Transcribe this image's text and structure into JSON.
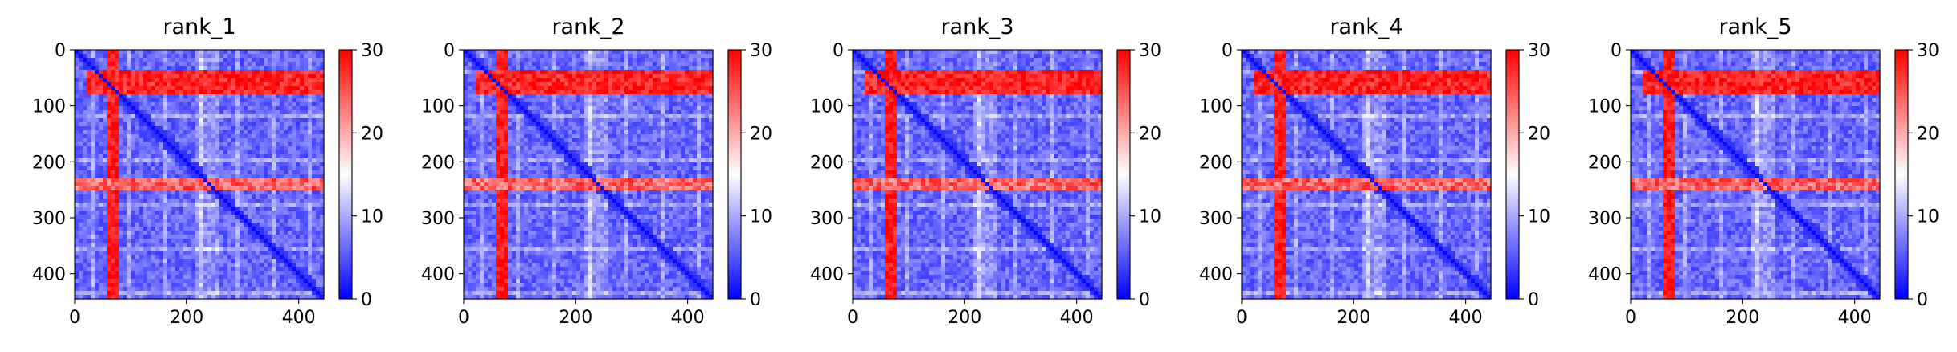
{
  "chart_data": [
    {
      "type": "heatmap",
      "title": "rank_1",
      "xlabel": "",
      "ylabel": "",
      "xlim": [
        0,
        445
      ],
      "ylim": [
        445,
        0
      ],
      "xticks": [
        0,
        200,
        400
      ],
      "yticks": [
        0,
        100,
        200,
        300,
        400
      ],
      "colorbar": {
        "min": 0,
        "max": 30,
        "ticks": [
          0,
          10,
          20,
          30
        ],
        "colormap": "bwr"
      },
      "features": {
        "red_column_band": [
          55,
          78
        ],
        "red_row_band": [
          38,
          82
        ],
        "red_row_secondary": [
          232,
          250
        ],
        "gap_columns": [
          215,
          258
        ],
        "diagonal": true
      }
    },
    {
      "type": "heatmap",
      "title": "rank_2",
      "xlabel": "",
      "ylabel": "",
      "xlim": [
        0,
        445
      ],
      "ylim": [
        445,
        0
      ],
      "xticks": [
        0,
        200,
        400
      ],
      "yticks": [
        0,
        100,
        200,
        300,
        400
      ],
      "colorbar": {
        "min": 0,
        "max": 30,
        "ticks": [
          0,
          10,
          20,
          30
        ],
        "colormap": "bwr"
      },
      "features": {
        "red_column_band": [
          55,
          78
        ],
        "red_row_band": [
          38,
          82
        ],
        "red_row_secondary": [
          232,
          250
        ],
        "gap_columns": [
          215,
          258
        ],
        "diagonal": true
      }
    },
    {
      "type": "heatmap",
      "title": "rank_3",
      "xlabel": "",
      "ylabel": "",
      "xlim": [
        0,
        445
      ],
      "ylim": [
        445,
        0
      ],
      "xticks": [
        0,
        200,
        400
      ],
      "yticks": [
        0,
        100,
        200,
        300,
        400
      ],
      "colorbar": {
        "min": 0,
        "max": 30,
        "ticks": [
          0,
          10,
          20,
          30
        ],
        "colormap": "bwr"
      },
      "features": {
        "red_column_band": [
          55,
          78
        ],
        "red_row_band": [
          38,
          82
        ],
        "red_row_secondary": [
          232,
          250
        ],
        "gap_columns": [
          215,
          258
        ],
        "diagonal": true
      }
    },
    {
      "type": "heatmap",
      "title": "rank_4",
      "xlabel": "",
      "ylabel": "",
      "xlim": [
        0,
        445
      ],
      "ylim": [
        445,
        0
      ],
      "xticks": [
        0,
        200,
        400
      ],
      "yticks": [
        0,
        100,
        200,
        300,
        400
      ],
      "colorbar": {
        "min": 0,
        "max": 30,
        "ticks": [
          0,
          10,
          20,
          30
        ],
        "colormap": "bwr"
      },
      "features": {
        "red_column_band": [
          55,
          78
        ],
        "red_row_band": [
          38,
          82
        ],
        "red_row_secondary": [
          232,
          250
        ],
        "gap_columns": [
          215,
          258
        ],
        "diagonal": true
      }
    },
    {
      "type": "heatmap",
      "title": "rank_5",
      "xlabel": "",
      "ylabel": "",
      "xlim": [
        0,
        445
      ],
      "ylim": [
        445,
        0
      ],
      "xticks": [
        0,
        200,
        400
      ],
      "yticks": [
        0,
        100,
        200,
        300,
        400
      ],
      "colorbar": {
        "min": 0,
        "max": 30,
        "ticks": [
          0,
          10,
          20,
          30
        ],
        "colormap": "bwr"
      },
      "features": {
        "red_column_band": [
          55,
          78
        ],
        "red_row_band": [
          38,
          82
        ],
        "red_row_secondary": [
          232,
          250
        ],
        "gap_columns": [
          215,
          258
        ],
        "diagonal": true
      }
    }
  ],
  "colors": {
    "low": "#0000ff",
    "mid": "#ffffff",
    "high": "#ff0000",
    "axis": "#000000"
  }
}
